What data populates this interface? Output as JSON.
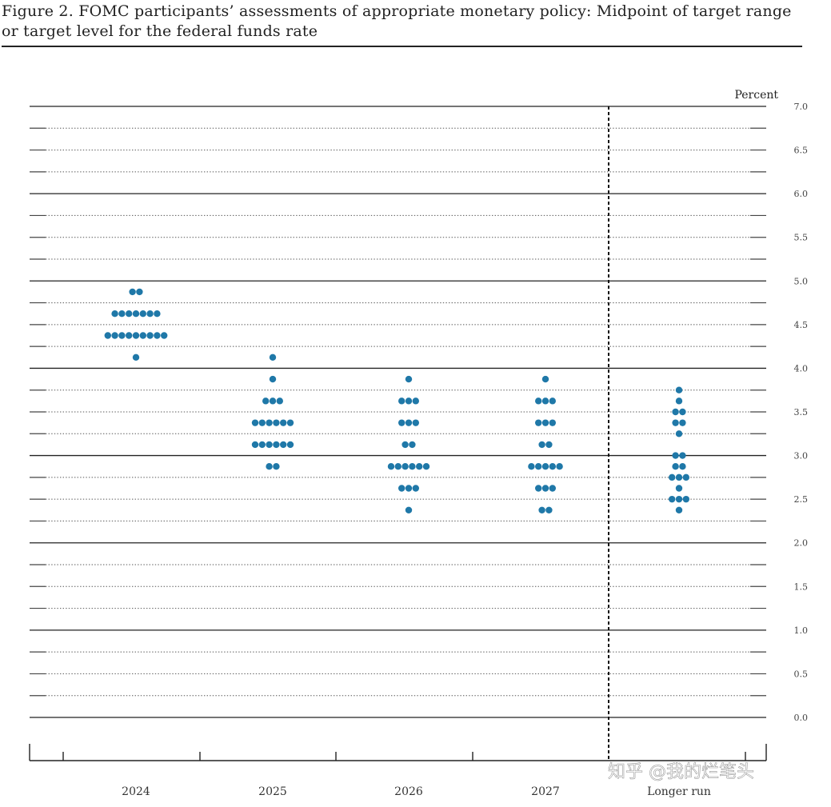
{
  "figure": {
    "title": "Figure 2.  FOMC participants’ assessments of appropriate monetary policy:  Midpoint of target range or target level for the federal funds rate"
  },
  "watermark": "知乎 @我的烂笔头",
  "chart_data": {
    "type": "scatter",
    "subtype": "dot-plot",
    "yunit": "Percent",
    "ylim": [
      0.0,
      7.0
    ],
    "yticks": [
      "7.0",
      "6.5",
      "6.0",
      "5.5",
      "5.0",
      "4.5",
      "4.0",
      "3.5",
      "3.0",
      "2.5",
      "2.0",
      "1.5",
      "1.0",
      "0.5",
      "0.0"
    ],
    "grid": "solid lines at whole percents, dotted lines every 0.25",
    "categories": [
      "2024",
      "2025",
      "2026",
      "2027",
      "Longer run"
    ],
    "separator_before": "Longer run",
    "dot_color": "#1f78a8",
    "series": [
      {
        "category": "2024",
        "points": [
          {
            "y": 4.875,
            "count": 2
          },
          {
            "y": 4.625,
            "count": 7
          },
          {
            "y": 4.375,
            "count": 9
          },
          {
            "y": 4.125,
            "count": 1
          }
        ]
      },
      {
        "category": "2025",
        "points": [
          {
            "y": 4.125,
            "count": 1
          },
          {
            "y": 3.875,
            "count": 1
          },
          {
            "y": 3.625,
            "count": 3
          },
          {
            "y": 3.375,
            "count": 6
          },
          {
            "y": 3.125,
            "count": 6
          },
          {
            "y": 2.875,
            "count": 2
          }
        ]
      },
      {
        "category": "2026",
        "points": [
          {
            "y": 3.875,
            "count": 1
          },
          {
            "y": 3.625,
            "count": 3
          },
          {
            "y": 3.375,
            "count": 3
          },
          {
            "y": 3.125,
            "count": 2
          },
          {
            "y": 2.875,
            "count": 6
          },
          {
            "y": 2.625,
            "count": 3
          },
          {
            "y": 2.375,
            "count": 1
          }
        ]
      },
      {
        "category": "2027",
        "points": [
          {
            "y": 3.875,
            "count": 1
          },
          {
            "y": 3.625,
            "count": 3
          },
          {
            "y": 3.375,
            "count": 3
          },
          {
            "y": 3.125,
            "count": 2
          },
          {
            "y": 2.875,
            "count": 5
          },
          {
            "y": 2.625,
            "count": 3
          },
          {
            "y": 2.375,
            "count": 2
          }
        ]
      },
      {
        "category": "Longer run",
        "points": [
          {
            "y": 3.75,
            "count": 1
          },
          {
            "y": 3.625,
            "count": 1
          },
          {
            "y": 3.5,
            "count": 2
          },
          {
            "y": 3.375,
            "count": 2
          },
          {
            "y": 3.25,
            "count": 1
          },
          {
            "y": 3.0,
            "count": 2
          },
          {
            "y": 2.875,
            "count": 2
          },
          {
            "y": 2.75,
            "count": 3
          },
          {
            "y": 2.625,
            "count": 1
          },
          {
            "y": 2.5,
            "count": 3
          },
          {
            "y": 2.375,
            "count": 1
          }
        ]
      }
    ]
  }
}
